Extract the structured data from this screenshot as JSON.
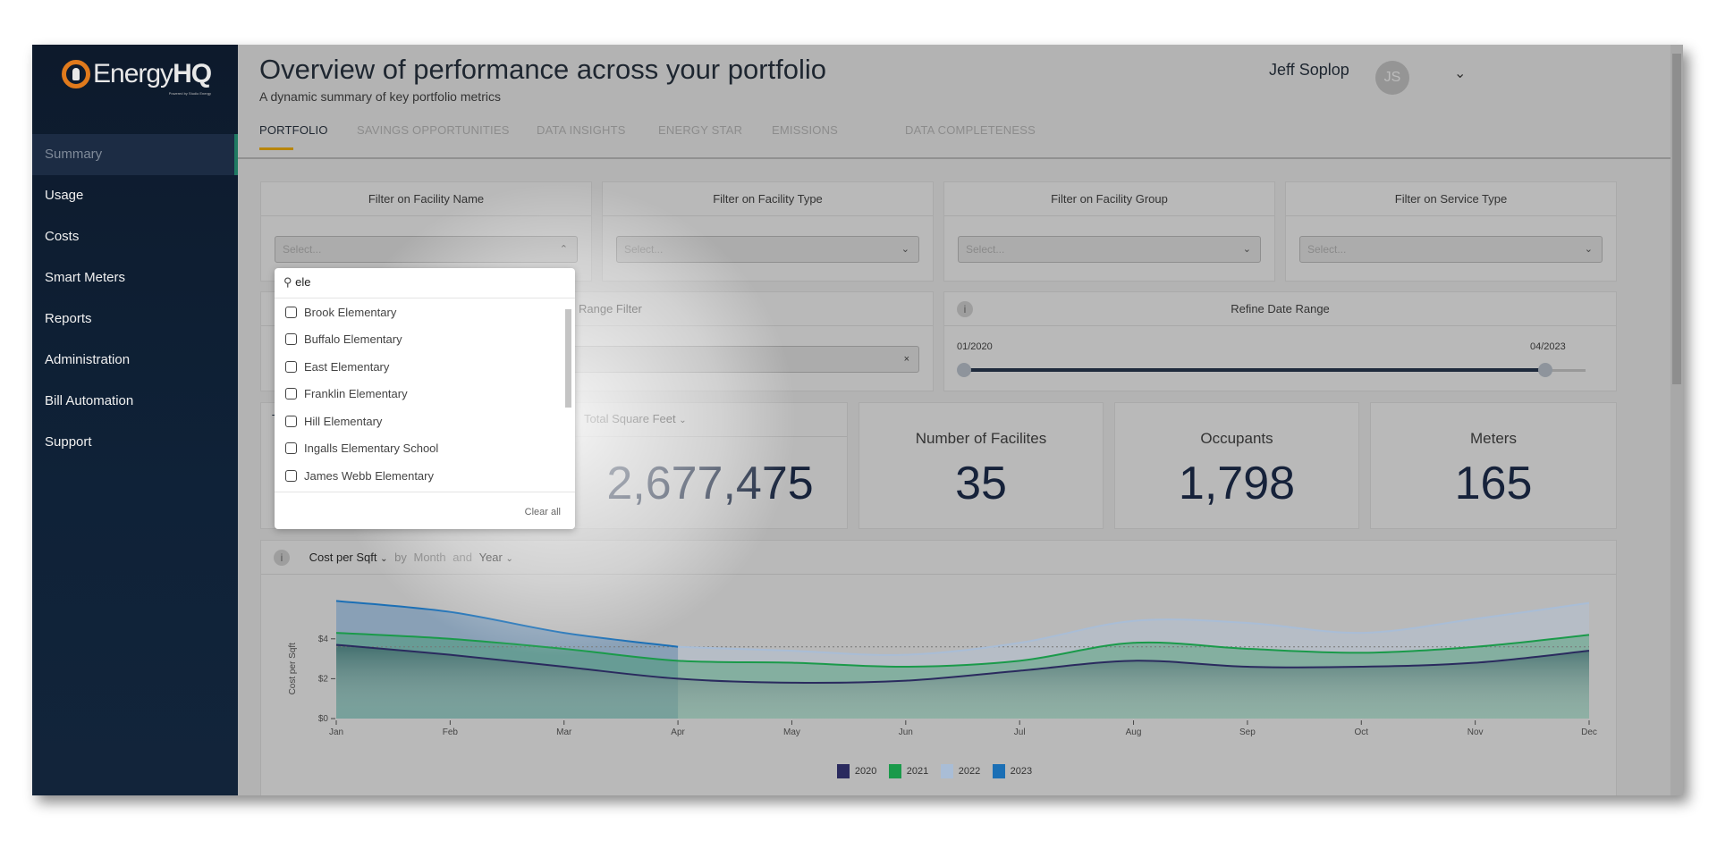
{
  "app": {
    "logo": "EnergyHQ",
    "logo_tagline": "Powered by Studio Energy"
  },
  "sidebar": {
    "items": [
      {
        "label": "Summary",
        "active": true
      },
      {
        "label": "Usage"
      },
      {
        "label": "Costs"
      },
      {
        "label": "Smart Meters"
      },
      {
        "label": "Reports"
      },
      {
        "label": "Administration"
      },
      {
        "label": "Bill Automation"
      },
      {
        "label": "Support"
      }
    ]
  },
  "header": {
    "title": "Overview of performance across your portfolio",
    "subtitle": "A dynamic summary of key portfolio metrics",
    "user_name": "Jeff Soplop",
    "user_initials": "JS"
  },
  "tabs": [
    {
      "label": "PORTFOLIO",
      "active": true
    },
    {
      "label": "SAVINGS OPPORTUNITIES"
    },
    {
      "label": "DATA INSIGHTS"
    },
    {
      "label": "ENERGY STAR"
    },
    {
      "label": "EMISSIONS"
    },
    {
      "label": "DATA COMPLETENESS"
    }
  ],
  "filters": [
    {
      "label": "Filter on Facility Name",
      "placeholder": "Select...",
      "open": true
    },
    {
      "label": "Filter on Facility Type",
      "placeholder": "Select..."
    },
    {
      "label": "Filter on Facility Group",
      "placeholder": "Select..."
    },
    {
      "label": "Filter on Service Type",
      "placeholder": "Select..."
    }
  ],
  "range_filter": {
    "label": "Range Filter",
    "clear": "×"
  },
  "date_range": {
    "label": "Refine Date Range",
    "start": "01/2020",
    "end": "04/2023",
    "position_fraction": [
      0,
      0.94
    ]
  },
  "dropdown": {
    "search_value": "ele",
    "options": [
      "Brook Elementary",
      "Buffalo Elementary",
      "East Elementary",
      "Franklin Elementary",
      "Hill Elementary",
      "Ingalls Elementary School",
      "James Webb Elementary"
    ],
    "clear_all": "Clear all"
  },
  "kpis": [
    {
      "label": "T",
      "value": ""
    },
    {
      "label": "Total Square Feet",
      "value": "2,677,475",
      "dropdown": true
    },
    {
      "label": "Number of Facilites",
      "value": "35"
    },
    {
      "label": "Occupants",
      "value": "1,798"
    },
    {
      "label": "Meters",
      "value": "165"
    }
  ],
  "chart_controls": {
    "metric": "Cost per Sqft",
    "by": "by",
    "period": "Month",
    "and": "and",
    "group": "Year"
  },
  "chart_data": {
    "type": "area",
    "ylabel": "Cost per Sqft",
    "categories": [
      "Jan",
      "Feb",
      "Mar",
      "Apr",
      "May",
      "Jun",
      "Jul",
      "Aug",
      "Sep",
      "Oct",
      "Nov",
      "Dec"
    ],
    "yticks": [
      "$0",
      "$2",
      "$4"
    ],
    "ylim": [
      0,
      6.5
    ],
    "reference_line": 3.6,
    "legend_position": "bottom",
    "series": [
      {
        "name": "2020",
        "color": "#2a2a5e",
        "values": [
          3.7,
          3.2,
          2.6,
          2.0,
          1.8,
          1.9,
          2.4,
          2.9,
          2.6,
          2.6,
          2.8,
          3.4
        ]
      },
      {
        "name": "2021",
        "color": "#1a9a4a",
        "values": [
          4.3,
          4.0,
          3.5,
          2.9,
          2.8,
          2.6,
          2.9,
          3.8,
          3.5,
          3.3,
          3.6,
          4.2
        ]
      },
      {
        "name": "2022",
        "color": "#a9bdd6",
        "values": [
          null,
          null,
          null,
          3.6,
          3.4,
          3.2,
          3.8,
          4.9,
          4.8,
          4.3,
          5.0,
          5.8
        ]
      },
      {
        "name": "2023",
        "color": "#1b6fb5",
        "values": [
          5.9,
          5.35,
          4.3,
          3.6,
          null,
          null,
          null,
          null,
          null,
          null,
          null,
          null
        ]
      }
    ]
  }
}
